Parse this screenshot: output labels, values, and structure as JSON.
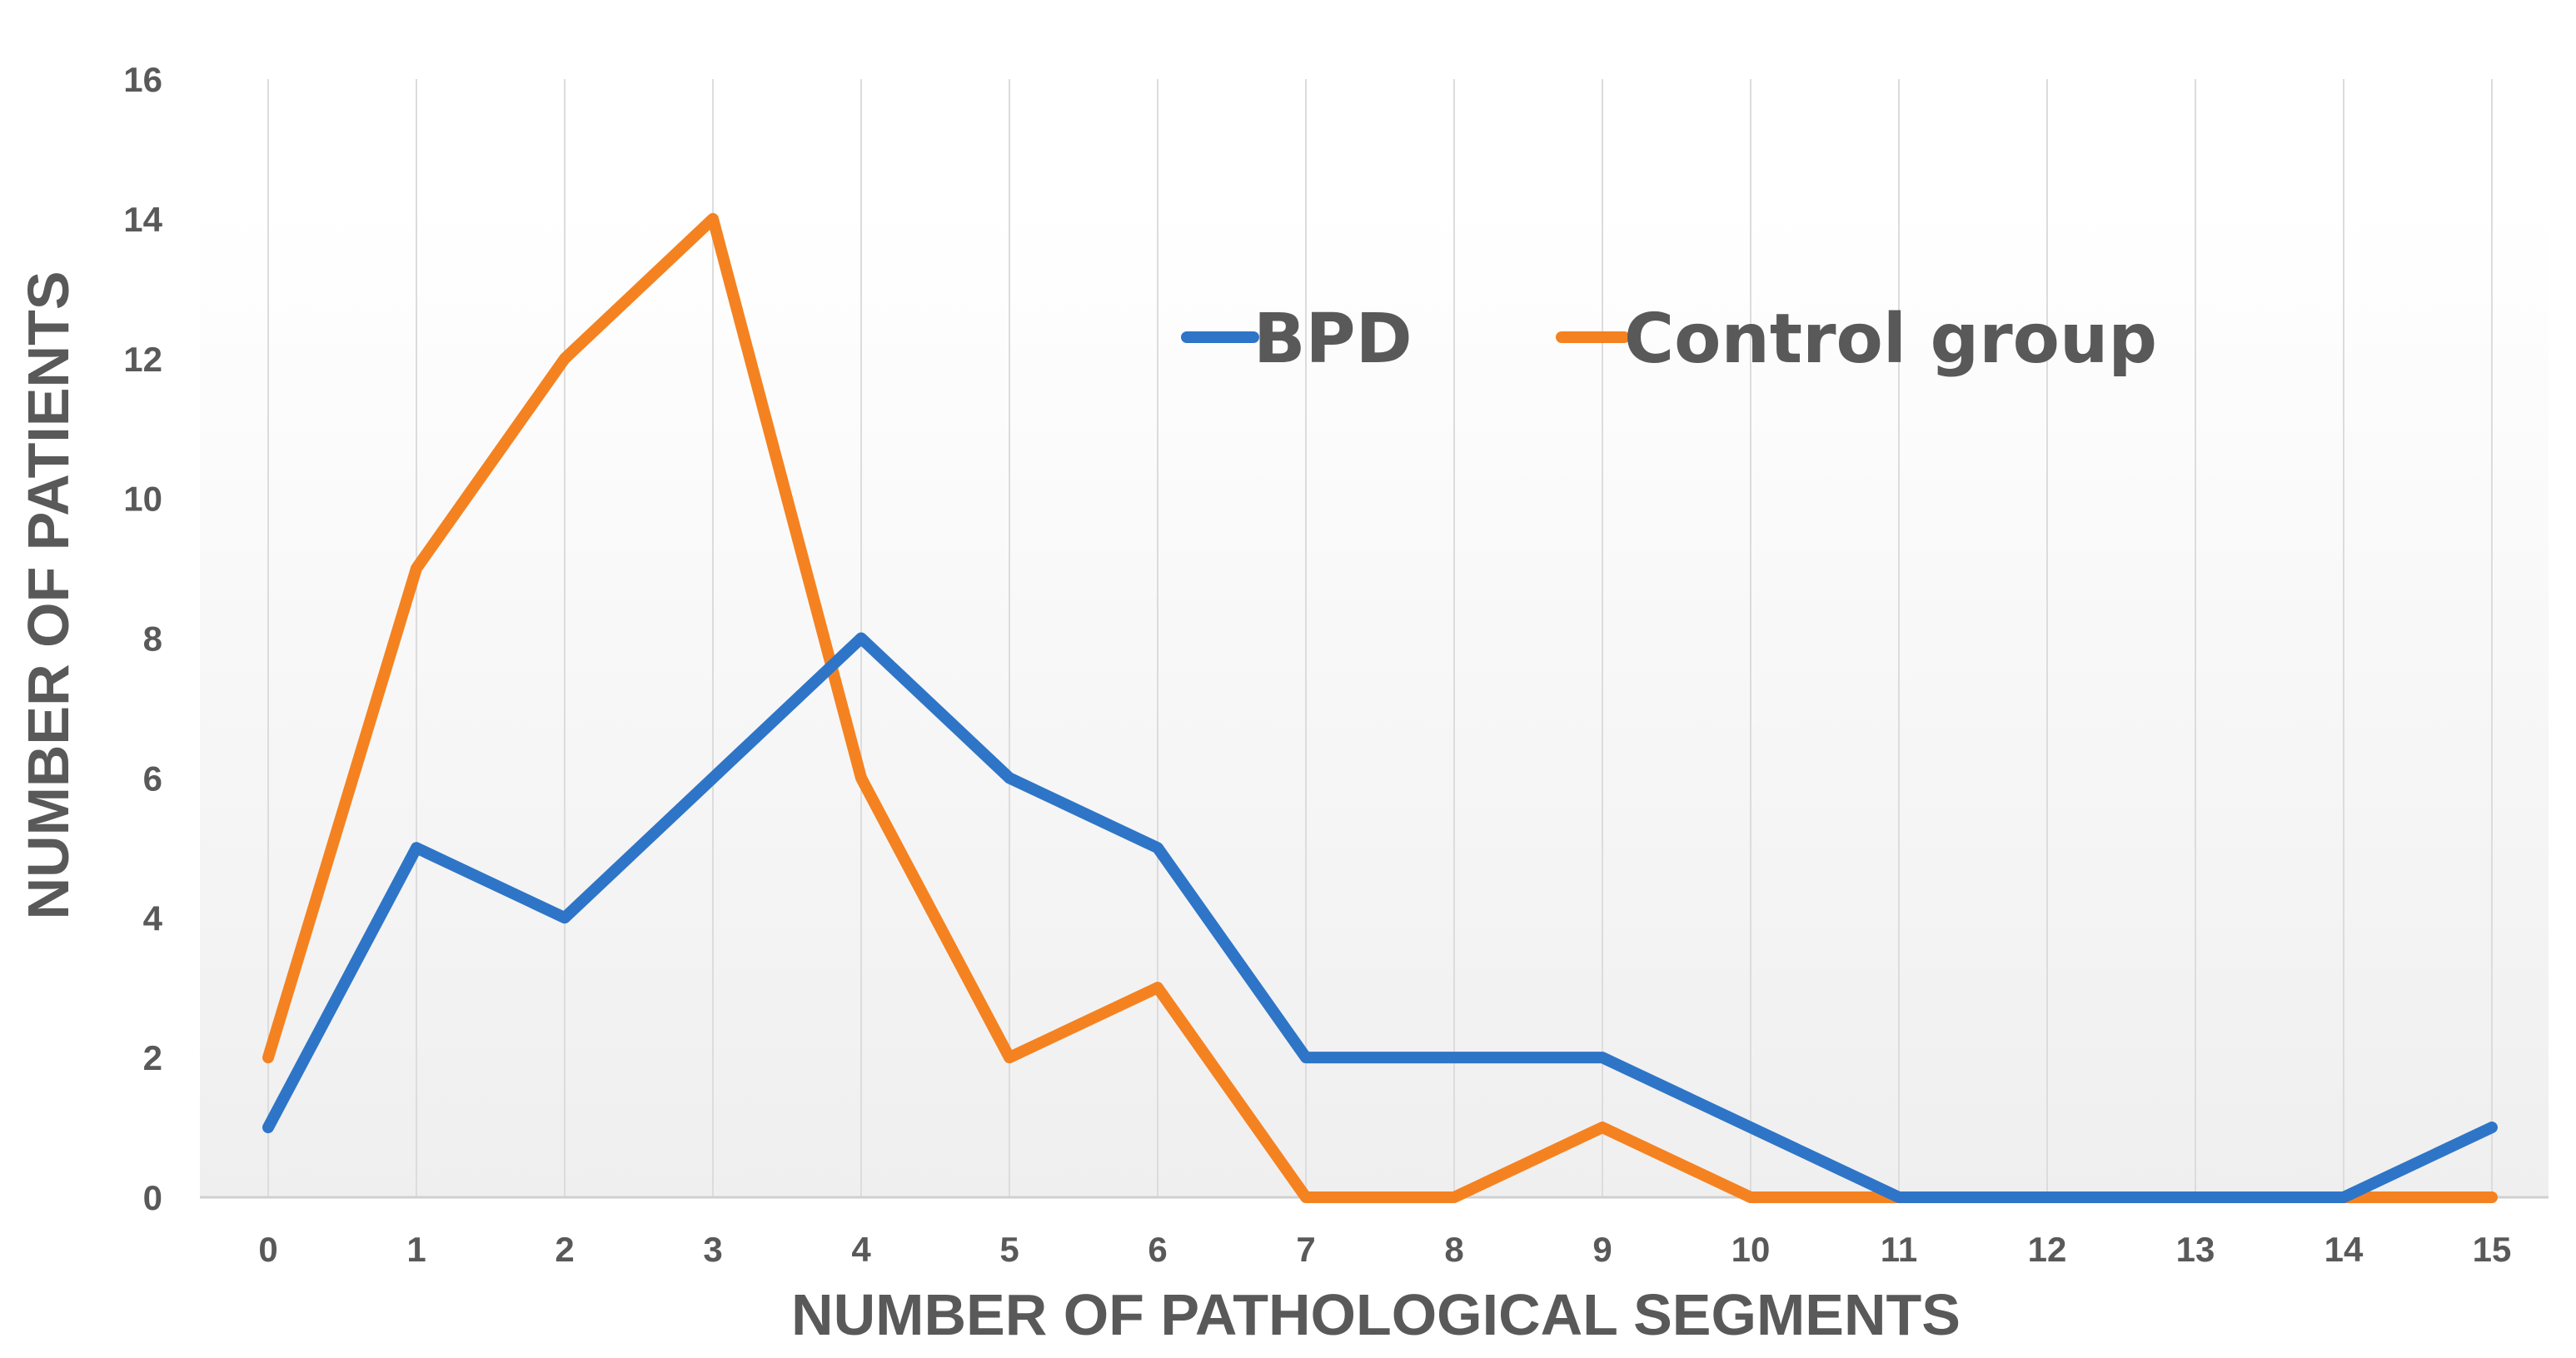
{
  "chart_data": {
    "type": "line",
    "title": "",
    "xlabel": "NUMBER OF PATHOLOGICAL SEGMENTS",
    "ylabel": "NUMBER OF PATIENTS",
    "categories": [
      "0",
      "1",
      "2",
      "3",
      "4",
      "5",
      "6",
      "7",
      "8",
      "9",
      "10",
      "11",
      "12",
      "13",
      "14",
      "15"
    ],
    "x": [
      0,
      1,
      2,
      3,
      4,
      5,
      6,
      7,
      8,
      9,
      10,
      11,
      12,
      13,
      14,
      15
    ],
    "yticks": [
      "0",
      "2",
      "4",
      "6",
      "8",
      "10",
      "12",
      "14",
      "16"
    ],
    "ylim": [
      0,
      16
    ],
    "grid": "vertical",
    "legend_position": "top-center",
    "series": [
      {
        "name": "BPD",
        "color": "#2E75C8",
        "values": [
          1,
          5,
          4,
          6,
          8,
          6,
          5,
          2,
          2,
          2,
          1,
          0,
          0,
          0,
          0,
          1
        ]
      },
      {
        "name": "Control group",
        "color": "#F58220",
        "values": [
          2,
          9,
          12,
          14,
          6,
          2,
          3,
          0,
          0,
          1,
          0,
          0,
          0,
          0,
          0,
          0
        ]
      }
    ]
  }
}
